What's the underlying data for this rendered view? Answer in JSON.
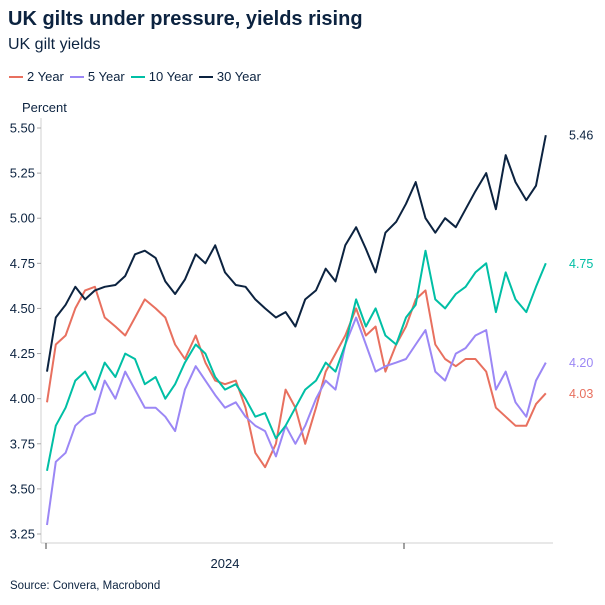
{
  "title": "UK gilts under pressure, yields rising",
  "subtitle": "UK gilt yields",
  "source": "Source: Convera, Macrobond",
  "chart_data": {
    "type": "line",
    "title": "UK gilts under pressure, yields rising",
    "subtitle": "UK gilt yields",
    "ylabel": "Percent",
    "xlabel": "",
    "ylim": [
      3.25,
      5.5
    ],
    "yticks": [
      "3.25",
      "3.50",
      "3.75",
      "4.00",
      "4.25",
      "4.50",
      "4.75",
      "5.00",
      "5.25",
      "5.50"
    ],
    "xtick_labels": [
      "2024"
    ],
    "grid": false,
    "legend": "top-left",
    "x": [
      "2024-01-02",
      "2024-01-11",
      "2024-01-21",
      "2024-01-31",
      "2024-02-10",
      "2024-02-20",
      "2024-03-01",
      "2024-03-12",
      "2024-03-22",
      "2024-04-01",
      "2024-04-11",
      "2024-04-22",
      "2024-05-02",
      "2024-05-12",
      "2024-05-22",
      "2024-06-02",
      "2024-06-12",
      "2024-06-22",
      "2024-07-02",
      "2024-07-13",
      "2024-07-23",
      "2024-08-02",
      "2024-08-12",
      "2024-08-23",
      "2024-09-02",
      "2024-09-12",
      "2024-09-22",
      "2024-10-03",
      "2024-10-13",
      "2024-10-23",
      "2024-11-02",
      "2024-11-13",
      "2024-11-23",
      "2024-12-03",
      "2024-12-13",
      "2024-12-24",
      "2025-01-03",
      "2025-01-13",
      "2025-01-23",
      "2025-02-02",
      "2025-02-12",
      "2025-02-23",
      "2025-03-05",
      "2025-03-15",
      "2025-03-26",
      "2025-04-05",
      "2025-04-15",
      "2025-04-25",
      "2025-05-06",
      "2025-05-16",
      "2025-05-26"
    ],
    "series": [
      {
        "name": "2 Year",
        "color": "#e8705f",
        "last_label": "4.03",
        "values": [
          3.98,
          4.3,
          4.35,
          4.5,
          4.6,
          4.62,
          4.45,
          4.4,
          4.35,
          4.45,
          4.55,
          4.5,
          4.45,
          4.3,
          4.22,
          4.35,
          4.2,
          4.1,
          4.08,
          4.1,
          3.95,
          3.7,
          3.62,
          3.75,
          4.05,
          3.95,
          3.75,
          3.95,
          4.15,
          4.25,
          4.35,
          4.5,
          4.35,
          4.4,
          4.15,
          4.3,
          4.4,
          4.55,
          4.6,
          4.3,
          4.22,
          4.18,
          4.22,
          4.22,
          4.15,
          3.95,
          3.9,
          3.85,
          3.85,
          3.97,
          4.03
        ]
      },
      {
        "name": "5 Year",
        "color": "#9b87f5",
        "last_label": "4.20",
        "values": [
          3.3,
          3.65,
          3.7,
          3.85,
          3.9,
          3.92,
          4.1,
          4.0,
          4.15,
          4.05,
          3.95,
          3.95,
          3.9,
          3.82,
          4.05,
          4.18,
          4.1,
          4.02,
          3.95,
          3.98,
          3.9,
          3.85,
          3.82,
          3.68,
          3.85,
          3.75,
          3.85,
          4.0,
          4.1,
          4.05,
          4.3,
          4.45,
          4.3,
          4.15,
          4.18,
          4.2,
          4.22,
          4.3,
          4.38,
          4.15,
          4.1,
          4.25,
          4.28,
          4.35,
          4.38,
          4.05,
          4.15,
          3.98,
          3.9,
          4.1,
          4.2
        ]
      },
      {
        "name": "10 Year",
        "color": "#00bfa5",
        "last_label": "4.75",
        "values": [
          3.6,
          3.85,
          3.95,
          4.1,
          4.15,
          4.05,
          4.2,
          4.12,
          4.25,
          4.22,
          4.08,
          4.12,
          4.0,
          4.08,
          4.2,
          4.3,
          4.25,
          4.12,
          4.05,
          4.08,
          4.0,
          3.9,
          3.92,
          3.78,
          3.85,
          3.95,
          4.05,
          4.1,
          4.2,
          4.15,
          4.3,
          4.55,
          4.4,
          4.5,
          4.35,
          4.3,
          4.45,
          4.52,
          4.82,
          4.55,
          4.5,
          4.58,
          4.62,
          4.7,
          4.75,
          4.48,
          4.7,
          4.55,
          4.48,
          4.62,
          4.75
        ]
      },
      {
        "name": "30 Year",
        "color": "#0c2340",
        "last_label": "5.46",
        "values": [
          4.15,
          4.45,
          4.52,
          4.62,
          4.55,
          4.6,
          4.62,
          4.63,
          4.68,
          4.8,
          4.82,
          4.78,
          4.65,
          4.58,
          4.66,
          4.8,
          4.75,
          4.85,
          4.7,
          4.63,
          4.62,
          4.55,
          4.5,
          4.45,
          4.48,
          4.4,
          4.55,
          4.6,
          4.72,
          4.65,
          4.85,
          4.95,
          4.83,
          4.7,
          4.92,
          4.98,
          5.08,
          5.2,
          5.0,
          4.92,
          5.0,
          4.95,
          5.05,
          5.15,
          5.25,
          5.05,
          5.35,
          5.2,
          5.1,
          5.18,
          5.46
        ]
      }
    ]
  }
}
